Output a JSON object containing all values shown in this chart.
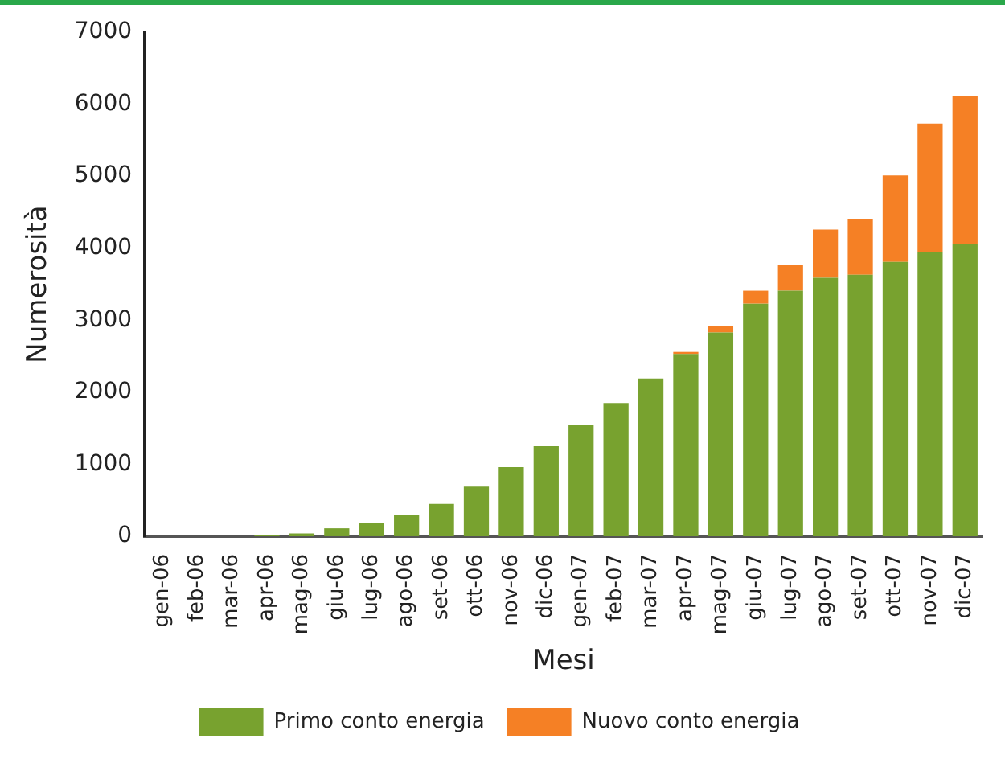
{
  "chart_data": {
    "type": "bar",
    "stacked": true,
    "xlabel": "Mesi",
    "ylabel": "Numerosità",
    "categories": [
      "gen-06",
      "feb-06",
      "mar-06",
      "apr-06",
      "mag-06",
      "giu-06",
      "lug-06",
      "ago-06",
      "set-06",
      "ott-06",
      "nov-06",
      "dic-06",
      "gen-07",
      "feb-07",
      "mar-07",
      "apr-07",
      "mag-07",
      "giu-07",
      "lug-07",
      "ago-07",
      "set-07",
      "ott-07",
      "nov-07",
      "dic-07"
    ],
    "series": [
      {
        "name": "Primo conto energia",
        "color": "#78a22f",
        "values": [
          0,
          0,
          0,
          15,
          40,
          110,
          180,
          290,
          450,
          690,
          960,
          1250,
          1540,
          1850,
          2190,
          2530,
          2830,
          3230,
          3410,
          3590,
          3630,
          3810,
          3950,
          4060
        ]
      },
      {
        "name": "Nuovo conto energia",
        "color": "#f58025",
        "values": [
          0,
          0,
          0,
          0,
          0,
          0,
          0,
          0,
          0,
          0,
          0,
          0,
          0,
          0,
          0,
          30,
          90,
          180,
          360,
          670,
          780,
          1200,
          1780,
          2050
        ]
      }
    ],
    "ylim": [
      0,
      7000
    ],
    "yticks": [
      0,
      1000,
      2000,
      3000,
      4000,
      5000,
      6000,
      7000
    ],
    "grid": false,
    "legend": "bottom"
  }
}
